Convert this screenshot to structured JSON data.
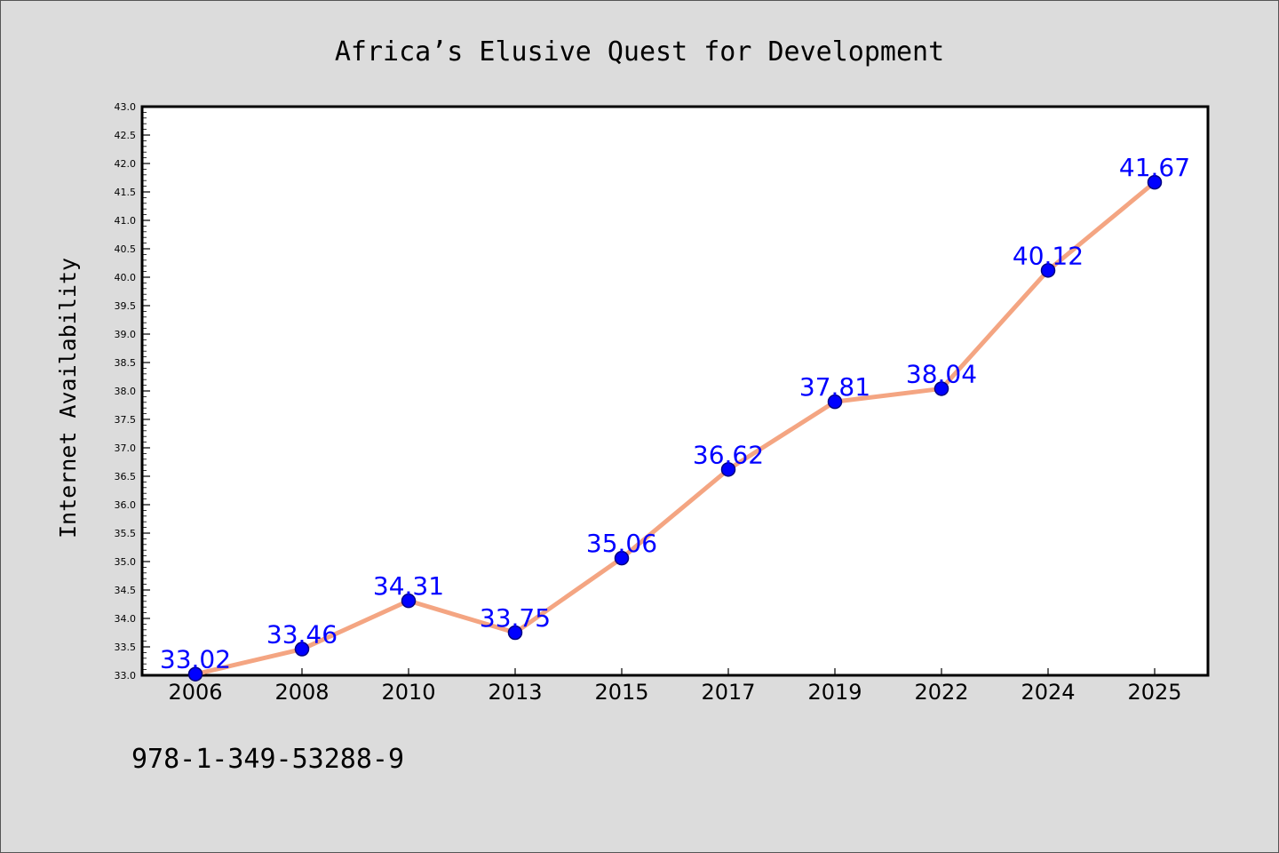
{
  "chart_data": {
    "type": "line",
    "title": "Africa’s Elusive Quest for Development",
    "ylabel": "Internet Availability",
    "xlabel": "",
    "categories": [
      "2006",
      "2008",
      "2010",
      "2013",
      "2015",
      "2017",
      "2019",
      "2022",
      "2024",
      "2025"
    ],
    "series": [
      {
        "values": [
          33.02,
          33.46,
          34.31,
          33.75,
          35.06,
          36.62,
          37.81,
          38.04,
          40.12,
          41.67
        ],
        "data_labels": [
          "33.02",
          "33.46",
          "34.31",
          "33.75",
          "35.06",
          "36.62",
          "37.81",
          "38.04",
          "40.12",
          "41.67"
        ]
      }
    ],
    "ylim": [
      33.0,
      43.0
    ],
    "yticks": [
      "33.0",
      "33.5",
      "34.0",
      "34.5",
      "35.0",
      "35.5",
      "36.0",
      "36.5",
      "37.0",
      "37.5",
      "38.0",
      "38.5",
      "39.0",
      "39.5",
      "40.0",
      "40.5",
      "41.0",
      "41.5",
      "42.0",
      "42.5",
      "43.0"
    ],
    "grid": false,
    "legend": "none",
    "colors": {
      "line": "#f4a582",
      "marker": "#0000ff",
      "marker_edge": "#000080",
      "label": "#0000ff",
      "plot_bg": "#ffffff",
      "page_bg": "#dcdcdc"
    }
  },
  "footnote": "978-1-349-53288-9"
}
